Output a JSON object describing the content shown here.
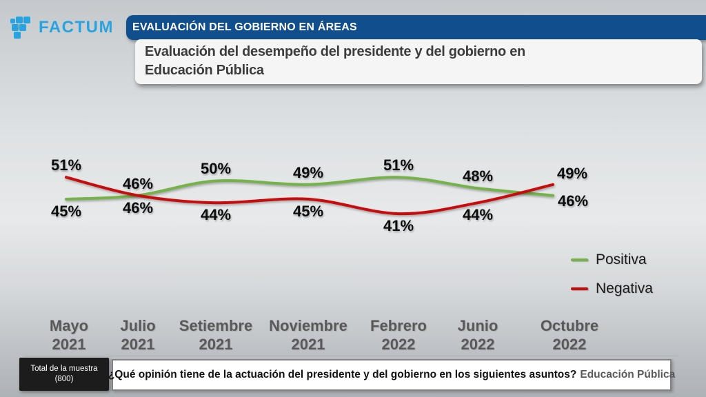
{
  "header": {
    "logo_text": "FACTUM",
    "logo_color": "#29a3e0",
    "ribbon_label": "EVALUACIÓN DEL GOBIERNO EN ÁREAS",
    "ribbon_color": "#114e8d",
    "title": "Evaluación del desempeño del presidente y del gobierno en\nEducación Pública"
  },
  "chart_data": {
    "type": "line",
    "title": "Evaluación del desempeño del presidente y del gobierno en Educación Pública",
    "categories": [
      "Mayo 2021",
      "Julio 2021",
      "Setiembre 2021",
      "Noviembre 2021",
      "Febrero 2022",
      "Junio 2022",
      "Octubre 2022"
    ],
    "series": [
      {
        "name": "Positiva",
        "color": "#76b24a",
        "values": [
          45,
          46,
          50,
          49,
          51,
          48,
          46
        ]
      },
      {
        "name": "Negativa",
        "color": "#c80b0b",
        "values": [
          51,
          46,
          44,
          45,
          41,
          44,
          49
        ]
      }
    ],
    "value_suffix": "%",
    "data_labels": true,
    "grid": false,
    "y_axis_visible": false,
    "legend_position": "right",
    "ylim": [
      38,
      55
    ]
  },
  "footer": {
    "sample_label": "Total de la muestra\n(800)",
    "question": "¿Qué opinión tiene de la actuación del presidente y del gobierno en los siguientes asuntos?",
    "question_highlight": "Educación Pública"
  }
}
